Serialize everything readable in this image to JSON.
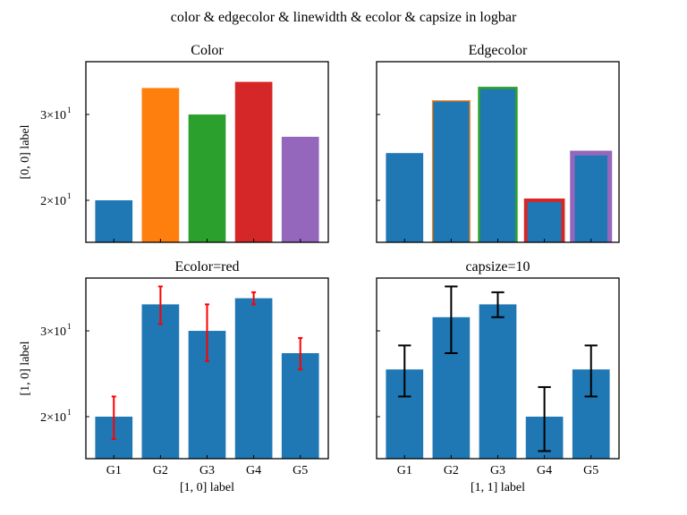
{
  "chart_data": {
    "title": "color & edgecolor & linewidth & ecolor & capsize in logbar",
    "subplots": [
      {
        "type": "bar",
        "title": "Color",
        "ylabel": "[0, 0] label",
        "xlabel": "",
        "yscale": "log",
        "ylim": [
          16.4,
          38.5
        ],
        "yticks": [
          {
            "value": 20,
            "label": "2×10",
            "exp": "1"
          },
          {
            "value": 30,
            "label": "3×10",
            "exp": "1"
          }
        ],
        "show_yticklabels": true,
        "show_xticklabels": false,
        "categories": [
          "G1",
          "G2",
          "G3",
          "G4",
          "G5"
        ],
        "values": [
          20,
          34,
          30,
          35,
          27
        ],
        "colors": [
          "#1f77b4",
          "#ff7f0e",
          "#2ca02c",
          "#d62728",
          "#9467bd"
        ],
        "edgecolors": [
          null,
          null,
          null,
          null,
          null
        ],
        "linewidths": [
          0,
          0,
          0,
          0,
          0
        ],
        "errors": null
      },
      {
        "type": "bar",
        "title": "Edgecolor",
        "ylabel": "",
        "xlabel": "",
        "yscale": "log",
        "ylim": [
          16.4,
          38.5
        ],
        "yticks": [
          {
            "value": 20,
            "label": "",
            "exp": ""
          },
          {
            "value": 30,
            "label": "",
            "exp": ""
          }
        ],
        "show_yticklabels": false,
        "show_xticklabels": false,
        "categories": [
          "G1",
          "G2",
          "G3",
          "G4",
          "G5"
        ],
        "values": [
          25,
          32,
          34,
          20,
          25
        ],
        "colors": [
          "#1f77b4",
          "#1f77b4",
          "#1f77b4",
          "#1f77b4",
          "#1f77b4"
        ],
        "edgecolors": [
          "#1f77b4",
          "#ff7f0e",
          "#2ca02c",
          "#d62728",
          "#9467bd"
        ],
        "linewidths": [
          0,
          1,
          2,
          3,
          4
        ],
        "errors": null
      },
      {
        "type": "bar",
        "title": "Ecolor=red",
        "ylabel": "[1, 0] label",
        "xlabel": "[1, 0] label",
        "yscale": "log",
        "ylim": [
          16.4,
          38.5
        ],
        "yticks": [
          {
            "value": 20,
            "label": "2×10",
            "exp": "1"
          },
          {
            "value": 30,
            "label": "3×10",
            "exp": "1"
          }
        ],
        "show_yticklabels": true,
        "show_xticklabels": true,
        "categories": [
          "G1",
          "G2",
          "G3",
          "G4",
          "G5"
        ],
        "values": [
          20,
          34,
          30,
          35,
          27
        ],
        "colors": [
          "#1f77b4",
          "#1f77b4",
          "#1f77b4",
          "#1f77b4",
          "#1f77b4"
        ],
        "edgecolors": [
          null,
          null,
          null,
          null,
          null
        ],
        "linewidths": [
          0,
          0,
          0,
          0,
          0
        ],
        "errors": [
          2,
          3,
          4,
          1,
          2
        ],
        "ecolor": "#ff0000",
        "capsize": 3
      },
      {
        "type": "bar",
        "title": "capsize=10",
        "ylabel": "",
        "xlabel": "[1, 1] label",
        "yscale": "log",
        "ylim": [
          16.4,
          38.5
        ],
        "yticks": [
          {
            "value": 20,
            "label": "",
            "exp": ""
          },
          {
            "value": 30,
            "label": "",
            "exp": ""
          }
        ],
        "show_yticklabels": false,
        "show_xticklabels": true,
        "categories": [
          "G1",
          "G2",
          "G3",
          "G4",
          "G5"
        ],
        "values": [
          25,
          32,
          34,
          20,
          25
        ],
        "colors": [
          "#1f77b4",
          "#1f77b4",
          "#1f77b4",
          "#1f77b4",
          "#1f77b4"
        ],
        "edgecolors": [
          null,
          null,
          null,
          null,
          null
        ],
        "linewidths": [
          0,
          0,
          0,
          0,
          0
        ],
        "errors": [
          3,
          5,
          2,
          3,
          3
        ],
        "ecolor": "#000000",
        "capsize": 10
      }
    ]
  }
}
